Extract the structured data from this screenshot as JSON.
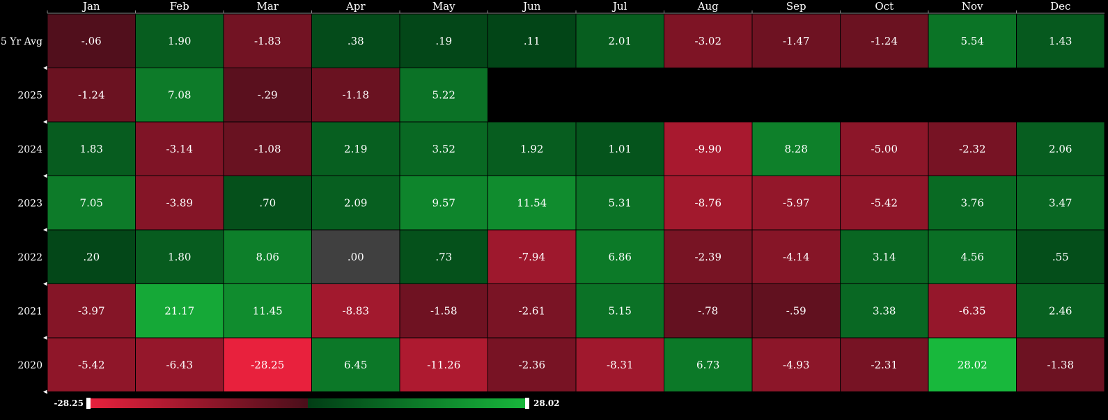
{
  "chart_data": {
    "type": "heatmap",
    "columns": [
      "Jan",
      "Feb",
      "Mar",
      "Apr",
      "May",
      "Jun",
      "Jul",
      "Aug",
      "Sep",
      "Oct",
      "Nov",
      "Dec"
    ],
    "rows": [
      {
        "label": "5 Yr Avg",
        "values": [
          -0.06,
          1.9,
          -1.83,
          0.38,
          0.19,
          0.11,
          2.01,
          -3.02,
          -1.47,
          -1.24,
          5.54,
          1.43
        ],
        "labels": [
          "-.06",
          "1.90",
          "-1.83",
          ".38",
          ".19",
          ".11",
          "2.01",
          "-3.02",
          "-1.47",
          "-1.24",
          "5.54",
          "1.43"
        ]
      },
      {
        "label": "2025",
        "values": [
          -1.24,
          7.08,
          -0.29,
          -1.18,
          5.22,
          null,
          null,
          null,
          null,
          null,
          null,
          null
        ],
        "labels": [
          "-1.24",
          "7.08",
          "-.29",
          "-1.18",
          "5.22",
          "",
          "",
          "",
          "",
          "",
          "",
          ""
        ]
      },
      {
        "label": "2024",
        "values": [
          1.83,
          -3.14,
          -1.08,
          2.19,
          3.52,
          1.92,
          1.01,
          -9.9,
          8.28,
          -5.0,
          -2.32,
          2.06
        ],
        "labels": [
          "1.83",
          "-3.14",
          "-1.08",
          "2.19",
          "3.52",
          "1.92",
          "1.01",
          "-9.90",
          "8.28",
          "-5.00",
          "-2.32",
          "2.06"
        ]
      },
      {
        "label": "2023",
        "values": [
          7.05,
          -3.89,
          0.7,
          2.09,
          9.57,
          11.54,
          5.31,
          -8.76,
          -5.97,
          -5.42,
          3.76,
          3.47
        ],
        "labels": [
          "7.05",
          "-3.89",
          ".70",
          "2.09",
          "9.57",
          "11.54",
          "5.31",
          "-8.76",
          "-5.97",
          "-5.42",
          "3.76",
          "3.47"
        ]
      },
      {
        "label": "2022",
        "values": [
          0.2,
          1.8,
          8.06,
          0.0,
          0.73,
          -7.94,
          6.86,
          -2.39,
          -4.14,
          3.14,
          4.56,
          0.55
        ],
        "labels": [
          ".20",
          "1.80",
          "8.06",
          ".00",
          ".73",
          "-7.94",
          "6.86",
          "-2.39",
          "-4.14",
          "3.14",
          "4.56",
          ".55"
        ]
      },
      {
        "label": "2021",
        "values": [
          -3.97,
          21.17,
          11.45,
          -8.83,
          -1.58,
          -2.61,
          5.15,
          -0.78,
          -0.59,
          3.38,
          -6.35,
          2.46
        ],
        "labels": [
          "-3.97",
          "21.17",
          "11.45",
          "-8.83",
          "-1.58",
          "-2.61",
          "5.15",
          "-.78",
          "-.59",
          "3.38",
          "-6.35",
          "2.46"
        ]
      },
      {
        "label": "2020",
        "values": [
          -5.42,
          -6.43,
          -28.25,
          6.45,
          -11.26,
          -2.36,
          -8.31,
          6.73,
          -4.93,
          -2.31,
          28.02,
          -1.38
        ],
        "labels": [
          "-5.42",
          "-6.43",
          "-28.25",
          "6.45",
          "-11.26",
          "-2.36",
          "-8.31",
          "6.73",
          "-4.93",
          "-2.31",
          "28.02",
          "-1.38"
        ]
      }
    ],
    "scale": {
      "min": -28.25,
      "max": 28.02,
      "min_label": "-28.25",
      "max_label": "28.02",
      "negative_dark": "#4a0e1a",
      "negative_bright": "#e8213d",
      "positive_dark": "#013d15",
      "positive_bright": "#18b83c",
      "zero_color": "#404040"
    },
    "background": "#000000",
    "grid_color": "#000000"
  }
}
